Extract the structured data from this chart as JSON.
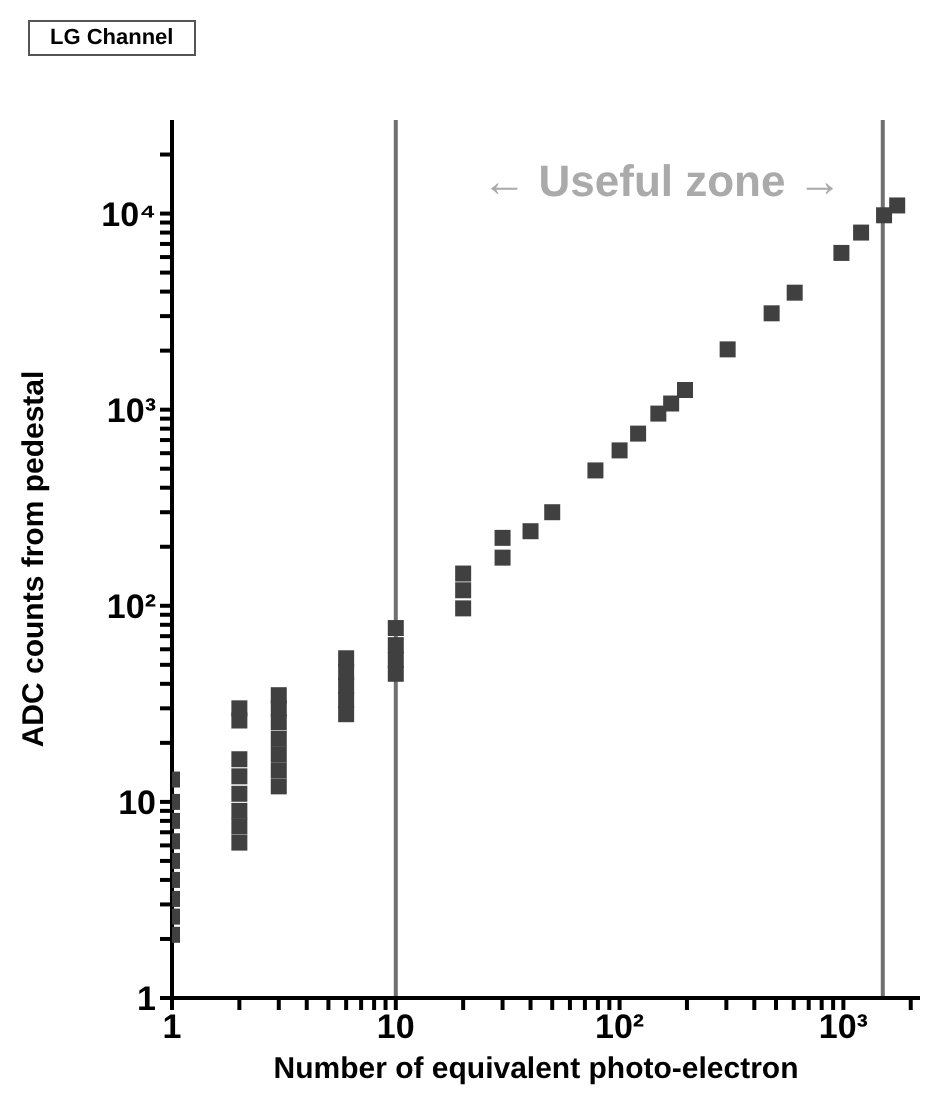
{
  "chart_data": {
    "type": "scatter",
    "title": "LG Channel",
    "xlabel": "Number of equivalent photo-electron",
    "ylabel": "ADC counts from pedestal",
    "log": "xy",
    "marker": "square",
    "xlim": [
      1,
      2200
    ],
    "ylim": [
      1,
      30000
    ],
    "xticks": [
      1,
      {
        "value": 2,
        "label": null
      },
      {
        "value": 3,
        "label": null
      },
      {
        "value": 4,
        "label": null
      },
      {
        "value": 5,
        "label": null
      },
      {
        "value": 6,
        "label": null
      },
      {
        "value": 7,
        "label": null
      },
      {
        "value": 8,
        "label": null
      },
      {
        "value": 9,
        "label": null
      },
      10,
      {
        "value": 20,
        "label": null
      },
      {
        "value": 30,
        "label": null
      },
      {
        "value": 40,
        "label": null
      },
      {
        "value": 50,
        "label": null
      },
      {
        "value": 60,
        "label": null
      },
      {
        "value": 70,
        "label": null
      },
      {
        "value": 80,
        "label": null
      },
      {
        "value": 90,
        "label": null
      },
      {
        "value": 100,
        "label": "10²"
      },
      {
        "value": 200,
        "label": null
      },
      {
        "value": 300,
        "label": null
      },
      {
        "value": 400,
        "label": null
      },
      {
        "value": 500,
        "label": null
      },
      {
        "value": 600,
        "label": null
      },
      {
        "value": 700,
        "label": null
      },
      {
        "value": 800,
        "label": null
      },
      {
        "value": 900,
        "label": null
      },
      {
        "value": 1000,
        "label": "10³"
      },
      {
        "value": 2000,
        "label": null
      }
    ],
    "yticks": [
      1,
      {
        "value": 2,
        "label": null
      },
      {
        "value": 3,
        "label": null
      },
      {
        "value": 4,
        "label": null
      },
      {
        "value": 5,
        "label": null
      },
      {
        "value": 6,
        "label": null
      },
      {
        "value": 7,
        "label": null
      },
      {
        "value": 8,
        "label": null
      },
      {
        "value": 9,
        "label": null
      },
      10,
      {
        "value": 20,
        "label": null
      },
      {
        "value": 30,
        "label": null
      },
      {
        "value": 40,
        "label": null
      },
      {
        "value": 50,
        "label": null
      },
      {
        "value": 60,
        "label": null
      },
      {
        "value": 70,
        "label": null
      },
      {
        "value": 80,
        "label": null
      },
      {
        "value": 90,
        "label": null
      },
      {
        "value": 100,
        "label": "10²"
      },
      {
        "value": 200,
        "label": null
      },
      {
        "value": 300,
        "label": null
      },
      {
        "value": 400,
        "label": null
      },
      {
        "value": 500,
        "label": null
      },
      {
        "value": 600,
        "label": null
      },
      {
        "value": 700,
        "label": null
      },
      {
        "value": 800,
        "label": null
      },
      {
        "value": 900,
        "label": null
      },
      {
        "value": 1000,
        "label": "10³"
      },
      {
        "value": 2000,
        "label": null
      },
      {
        "value": 3000,
        "label": null
      },
      {
        "value": 4000,
        "label": null
      },
      {
        "value": 5000,
        "label": null
      },
      {
        "value": 6000,
        "label": null
      },
      {
        "value": 7000,
        "label": null
      },
      {
        "value": 8000,
        "label": null
      },
      {
        "value": 9000,
        "label": null
      },
      {
        "value": 10000,
        "label": "10⁴"
      },
      {
        "value": 20000,
        "label": null
      }
    ],
    "ref_lines": [
      {
        "axis": "x",
        "value": 10,
        "color": "#707070"
      },
      {
        "axis": "x",
        "value": 1500,
        "color": "#707070"
      }
    ],
    "annotations": [
      "← Useful zone →"
    ],
    "series": [
      {
        "color": "#404040",
        "x": [
          1,
          1,
          1,
          1,
          1,
          1,
          1,
          1,
          1,
          2,
          2,
          2,
          2,
          2,
          2,
          2,
          2,
          3,
          3,
          3,
          3,
          3,
          3,
          3,
          6,
          6,
          6,
          6,
          6,
          10,
          10,
          10,
          10,
          20,
          20,
          20,
          30,
          30,
          40,
          50,
          78,
          100,
          121,
          149,
          170,
          196,
          304,
          478,
          606,
          980,
          1200,
          1520,
          1740
        ],
        "values": [
          2.1,
          2.6,
          3.2,
          4,
          5,
          6.3,
          8,
          10,
          13,
          6.2,
          7.5,
          9,
          11,
          13.5,
          16.5,
          26,
          30,
          12,
          14.5,
          17.5,
          21,
          25.5,
          30,
          35,
          28,
          33,
          39,
          46,
          54,
          45,
          53,
          63,
          77,
          97,
          120,
          146,
          176,
          222,
          240,
          300,
          490,
          620,
          755,
          955,
          1075,
          1260,
          2030,
          3100,
          3950,
          6300,
          8000,
          9800,
          11000
        ]
      }
    ]
  }
}
